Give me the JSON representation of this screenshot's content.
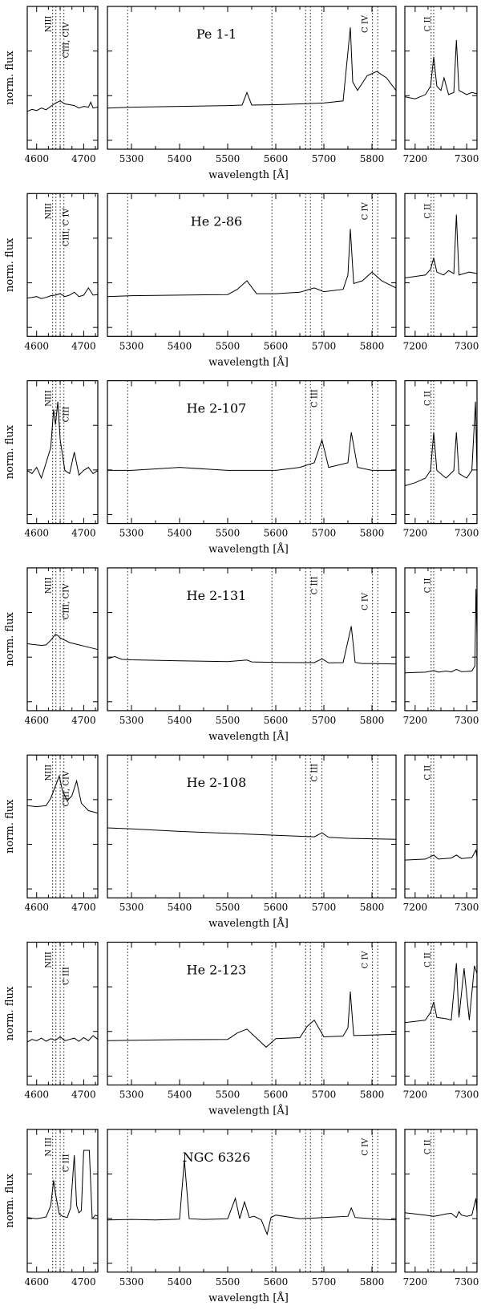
{
  "chart_data": {
    "type": "line",
    "shared_xlabel": "wavelength  [Å]",
    "shared_ylabel": "norm. flux",
    "windows": [
      {
        "xlim": [
          4580,
          4730
        ],
        "ticks": [
          4600,
          4700
        ]
      },
      {
        "xlim": [
          5250,
          5850
        ],
        "ticks": [
          5300,
          5400,
          5500,
          5600,
          5700,
          5800
        ]
      },
      {
        "xlim": [
          7180,
          7320
        ],
        "ticks": [
          7200,
          7300
        ]
      }
    ],
    "marker_lines": {
      "window1": [
        4634,
        4641,
        4650,
        4658
      ],
      "window2": [
        5292,
        5592,
        5662,
        5672,
        5696,
        5801,
        5812
      ],
      "window3": [
        7231,
        7236
      ]
    },
    "panels": [
      {
        "object": "Pe 1-1",
        "labels": {
          "w1": [
            "NIII",
            "CIII, CIV"
          ],
          "w2": [
            "C IV"
          ],
          "w3": [
            "C II"
          ]
        },
        "w1": {
          "x": [
            4580,
            4590,
            4600,
            4610,
            4620,
            4630,
            4640,
            4650,
            4660,
            4670,
            4680,
            4690,
            4700,
            4710,
            4715,
            4720,
            4730
          ],
          "y": [
            0.1,
            0.15,
            0.12,
            0.18,
            0.14,
            0.22,
            0.3,
            0.35,
            0.28,
            0.26,
            0.24,
            0.18,
            0.22,
            0.2,
            0.32,
            0.18,
            0.2
          ]
        },
        "w2": {
          "x": [
            5250,
            5300,
            5400,
            5500,
            5530,
            5540,
            5550,
            5600,
            5650,
            5700,
            5740,
            5755,
            5760,
            5770,
            5790,
            5810,
            5830,
            5850
          ],
          "y": [
            0.18,
            0.2,
            0.22,
            0.24,
            0.25,
            0.55,
            0.25,
            0.26,
            0.28,
            0.3,
            0.35,
            2.1,
            0.8,
            0.6,
            0.95,
            1.05,
            0.9,
            0.6
          ]
        },
        "w3": {
          "x": [
            7180,
            7200,
            7220,
            7230,
            7236,
            7242,
            7250,
            7256,
            7265,
            7275,
            7280,
            7285,
            7300,
            7310,
            7320
          ],
          "y": [
            0.45,
            0.4,
            0.5,
            0.7,
            1.4,
            0.7,
            0.6,
            0.9,
            0.5,
            0.55,
            1.8,
            0.6,
            0.5,
            0.55,
            0.52
          ]
        }
      },
      {
        "object": "He 2-86",
        "labels": {
          "w1": [
            "NIII",
            "CIII, C IV"
          ],
          "w2": [
            "C IV"
          ],
          "w3": [
            "C II"
          ]
        },
        "w1": {
          "x": [
            4580,
            4590,
            4600,
            4610,
            4620,
            4630,
            4640,
            4650,
            4660,
            4670,
            4680,
            4690,
            4700,
            4710,
            4720,
            4730
          ],
          "y": [
            0.2,
            0.22,
            0.25,
            0.18,
            0.22,
            0.28,
            0.3,
            0.35,
            0.25,
            0.3,
            0.4,
            0.25,
            0.3,
            0.55,
            0.3,
            0.32
          ]
        },
        "w2": {
          "x": [
            5250,
            5300,
            5400,
            5500,
            5520,
            5540,
            5560,
            5600,
            5650,
            5680,
            5700,
            5740,
            5750,
            5755,
            5762,
            5780,
            5800,
            5820,
            5850
          ],
          "y": [
            0.25,
            0.28,
            0.3,
            0.32,
            0.5,
            0.8,
            0.35,
            0.35,
            0.4,
            0.55,
            0.42,
            0.5,
            1.0,
            2.6,
            0.7,
            0.8,
            1.1,
            0.8,
            0.55
          ]
        },
        "w3": {
          "x": [
            7180,
            7200,
            7220,
            7230,
            7236,
            7242,
            7255,
            7265,
            7275,
            7280,
            7285,
            7295,
            7305,
            7320
          ],
          "y": [
            0.9,
            0.95,
            1.0,
            1.2,
            1.6,
            1.1,
            1.0,
            1.15,
            1.05,
            3.1,
            1.0,
            1.05,
            1.1,
            1.05
          ]
        }
      },
      {
        "object": "He 2-107",
        "labels": {
          "w1": [
            "NIII",
            "CIII"
          ],
          "w2": [
            "C III"
          ],
          "w3": [
            "C II"
          ]
        },
        "w1": {
          "x": [
            4580,
            4590,
            4600,
            4610,
            4620,
            4630,
            4636,
            4640,
            4645,
            4650,
            4660,
            4670,
            4680,
            4690,
            4700,
            4710,
            4720,
            4730
          ],
          "y": [
            1.0,
            0.98,
            1.02,
            0.95,
            1.05,
            1.15,
            1.4,
            1.3,
            1.45,
            1.2,
            1.0,
            0.98,
            1.12,
            0.97,
            1.0,
            1.02,
            0.98,
            1.0
          ]
        },
        "w2": {
          "x": [
            5250,
            5300,
            5400,
            5500,
            5600,
            5650,
            5680,
            5696,
            5710,
            5750,
            5757,
            5770,
            5800,
            5850
          ],
          "y": [
            1.0,
            1.0,
            1.02,
            1.0,
            1.0,
            1.02,
            1.05,
            1.2,
            1.02,
            1.05,
            1.25,
            1.02,
            1.0,
            1.0
          ]
        },
        "w3": {
          "x": [
            7180,
            7200,
            7220,
            7230,
            7236,
            7242,
            7260,
            7275,
            7280,
            7285,
            7300,
            7310,
            7317,
            7320
          ],
          "y": [
            0.9,
            0.92,
            0.95,
            1.0,
            1.25,
            1.0,
            0.95,
            1.0,
            1.25,
            0.98,
            0.95,
            1.0,
            1.45,
            1.0
          ]
        }
      },
      {
        "object": "He 2-131",
        "labels": {
          "w1": [
            "NIII",
            "CIII, CIV"
          ],
          "w2": [
            "C III",
            "C IV"
          ],
          "w3": [
            "C II"
          ]
        },
        "w1": {
          "x": [
            4580,
            4590,
            4600,
            4610,
            4620,
            4630,
            4640,
            4645,
            4650,
            4660,
            4670,
            4680,
            4690,
            4700,
            4710,
            4720,
            4730
          ],
          "y": [
            2.15,
            2.12,
            2.1,
            2.08,
            2.1,
            2.3,
            2.55,
            2.5,
            2.4,
            2.3,
            2.2,
            2.15,
            2.1,
            2.05,
            2.0,
            1.95,
            1.9
          ]
        },
        "w2": {
          "x": [
            5250,
            5265,
            5280,
            5300,
            5400,
            5500,
            5540,
            5550,
            5600,
            5680,
            5696,
            5710,
            5740,
            5757,
            5765,
            5780,
            5800,
            5850
          ],
          "y": [
            1.5,
            1.6,
            1.48,
            1.46,
            1.42,
            1.38,
            1.45,
            1.37,
            1.35,
            1.34,
            1.5,
            1.33,
            1.34,
            2.9,
            1.35,
            1.3,
            1.3,
            1.28
          ]
        },
        "w3": {
          "x": [
            7180,
            7200,
            7220,
            7236,
            7245,
            7260,
            7270,
            7280,
            7290,
            7300,
            7310,
            7316,
            7318,
            7320
          ],
          "y": [
            0.9,
            0.92,
            0.93,
            1.0,
            0.93,
            0.98,
            0.94,
            1.05,
            0.95,
            0.96,
            0.98,
            1.2,
            4.5,
            2.5
          ]
        }
      },
      {
        "object": "He 2-108",
        "labels": {
          "w1": [
            "NIII",
            "CIII, CIV"
          ],
          "w2": [
            "C III"
          ],
          "w3": [
            "C II"
          ]
        },
        "w1": {
          "x": [
            4580,
            4600,
            4620,
            4630,
            4640,
            4648,
            4655,
            4665,
            4675,
            4685,
            4695,
            4710,
            4730
          ],
          "y": [
            1.8,
            1.78,
            1.8,
            1.95,
            2.2,
            2.4,
            2.1,
            1.9,
            2.0,
            2.3,
            1.85,
            1.7,
            1.65
          ]
        },
        "w2": {
          "x": [
            5250,
            5300,
            5400,
            5500,
            5600,
            5680,
            5696,
            5710,
            5750,
            5800,
            5850
          ],
          "y": [
            1.35,
            1.33,
            1.28,
            1.24,
            1.2,
            1.17,
            1.25,
            1.16,
            1.14,
            1.13,
            1.12
          ]
        },
        "w3": {
          "x": [
            7180,
            7200,
            7220,
            7236,
            7245,
            7270,
            7280,
            7290,
            7310,
            7318,
            7320
          ],
          "y": [
            0.7,
            0.71,
            0.72,
            0.8,
            0.72,
            0.74,
            0.8,
            0.73,
            0.75,
            0.9,
            0.76
          ]
        }
      },
      {
        "object": "He 2-123",
        "labels": {
          "w1": [
            "NIII",
            "C III"
          ],
          "w2": [
            "C IV"
          ],
          "w3": [
            "C II"
          ]
        },
        "w1": {
          "x": [
            4580,
            4590,
            4600,
            4610,
            4620,
            4630,
            4640,
            4650,
            4660,
            4670,
            4680,
            4690,
            4700,
            4710,
            4720,
            4730
          ],
          "y": [
            0.45,
            0.55,
            0.5,
            0.6,
            0.48,
            0.58,
            0.52,
            0.65,
            0.5,
            0.55,
            0.6,
            0.48,
            0.62,
            0.5,
            0.7,
            0.55
          ]
        },
        "w2": {
          "x": [
            5250,
            5300,
            5400,
            5500,
            5520,
            5540,
            5560,
            5580,
            5600,
            5650,
            5665,
            5680,
            5700,
            5740,
            5750,
            5755,
            5762,
            5800,
            5850
          ],
          "y": [
            0.5,
            0.52,
            0.54,
            0.55,
            0.8,
            0.95,
            0.6,
            0.25,
            0.58,
            0.62,
            1.05,
            1.3,
            0.65,
            0.68,
            1.0,
            2.4,
            0.7,
            0.72,
            0.75
          ]
        },
        "w3": {
          "x": [
            7180,
            7200,
            7220,
            7230,
            7236,
            7242,
            7260,
            7270,
            7280,
            7285,
            7295,
            7305,
            7315,
            7320
          ],
          "y": [
            1.2,
            1.25,
            1.3,
            1.6,
            2.0,
            1.4,
            1.35,
            1.3,
            3.5,
            1.4,
            3.3,
            1.3,
            3.4,
            3.1
          ]
        }
      },
      {
        "object": "NGC 6326",
        "labels": {
          "w1": [
            "N III",
            "C III"
          ],
          "w2": [
            "C IV"
          ],
          "w3": [
            "C II"
          ]
        },
        "w1": {
          "x": [
            4580,
            4600,
            4620,
            4630,
            4636,
            4640,
            4648,
            4655,
            4665,
            4672,
            4680,
            4685,
            4690,
            4695,
            4700,
            4705,
            4712,
            4718,
            4725,
            4730
          ],
          "y": [
            0.4,
            0.35,
            0.42,
            0.9,
            1.95,
            1.4,
            0.55,
            0.45,
            0.4,
            0.8,
            3.0,
            0.9,
            0.6,
            0.7,
            3.2,
            3.2,
            3.2,
            0.35,
            0.5,
            0.45
          ]
        },
        "w2": {
          "x": [
            5250,
            5300,
            5350,
            5400,
            5410,
            5420,
            5450,
            5500,
            5516,
            5525,
            5535,
            5545,
            5555,
            5570,
            5582,
            5590,
            5600,
            5650,
            5700,
            5750,
            5757,
            5765,
            5800,
            5850
          ],
          "y": [
            0.3,
            0.32,
            0.3,
            0.33,
            2.8,
            0.35,
            0.32,
            0.35,
            1.2,
            0.35,
            1.05,
            0.4,
            0.45,
            0.3,
            -0.3,
            0.4,
            0.5,
            0.35,
            0.4,
            0.45,
            0.8,
            0.4,
            0.35,
            0.3
          ]
        },
        "w3": {
          "x": [
            7180,
            7200,
            7220,
            7236,
            7245,
            7260,
            7270,
            7280,
            7285,
            7290,
            7300,
            7310,
            7318,
            7320
          ],
          "y": [
            0.6,
            0.55,
            0.5,
            0.45,
            0.48,
            0.55,
            0.58,
            0.4,
            0.65,
            0.5,
            0.45,
            0.5,
            1.2,
            0.6
          ]
        }
      }
    ]
  }
}
